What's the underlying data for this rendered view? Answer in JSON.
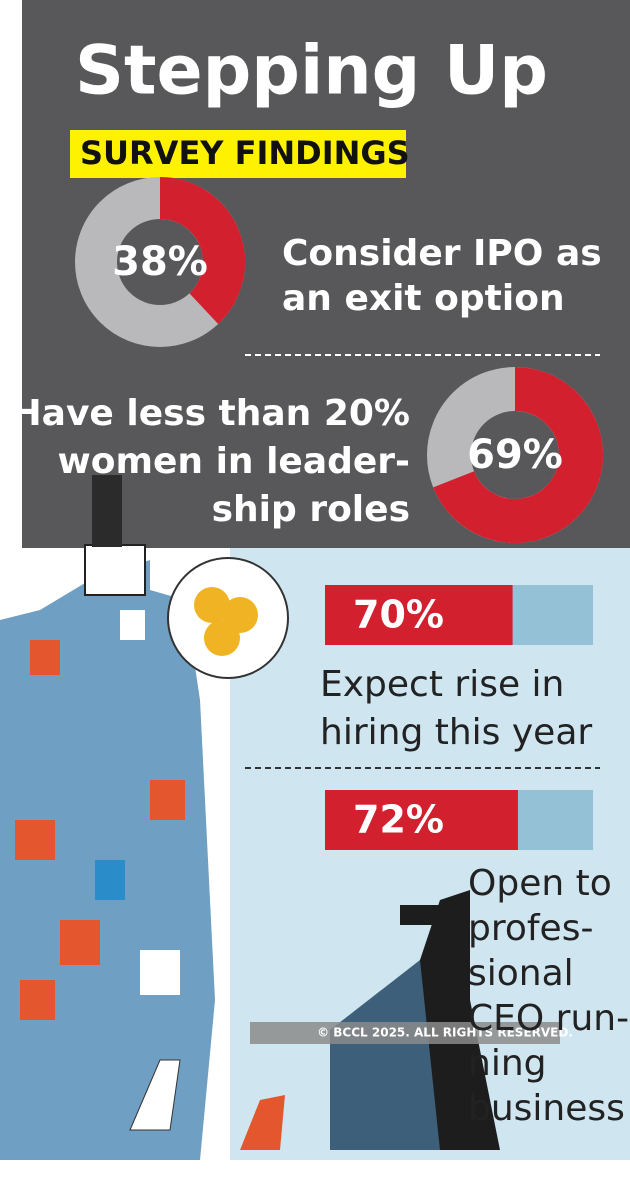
{
  "header": {
    "title": "Stepping Up",
    "subtitle": "SURVEY FINDINGS",
    "copyright": "© BCCL 2025. ALL RIGHTS RESERVED."
  },
  "chart_data": [
    {
      "type": "donut",
      "values": [
        38
      ],
      "value_labels": [
        "38%"
      ],
      "color": "#d3202f",
      "track_color": "#b9b9bb",
      "label": [
        "Consider IPO as",
        "an exit option"
      ]
    },
    {
      "type": "donut",
      "values": [
        69
      ],
      "value_labels": [
        "69%"
      ],
      "color": "#d3202f",
      "track_color": "#b9b9bb",
      "label": [
        "Have less than 20%",
        "women in leader-",
        "ship roles"
      ]
    },
    {
      "type": "bar",
      "values": [
        70
      ],
      "value_labels": [
        "70%"
      ],
      "xlim": [
        0,
        100
      ],
      "color": "#d3202f",
      "track_color": "#94c1d6",
      "label": [
        "Expect rise in",
        "hiring this year"
      ]
    },
    {
      "type": "bar",
      "values": [
        72
      ],
      "value_labels": [
        "72%"
      ],
      "xlim": [
        0,
        100
      ],
      "color": "#d3202f",
      "track_color": "#94c1d6",
      "label": [
        "Open to",
        "profes-",
        "sional",
        "CEO run-",
        "ning",
        "business"
      ]
    }
  ]
}
